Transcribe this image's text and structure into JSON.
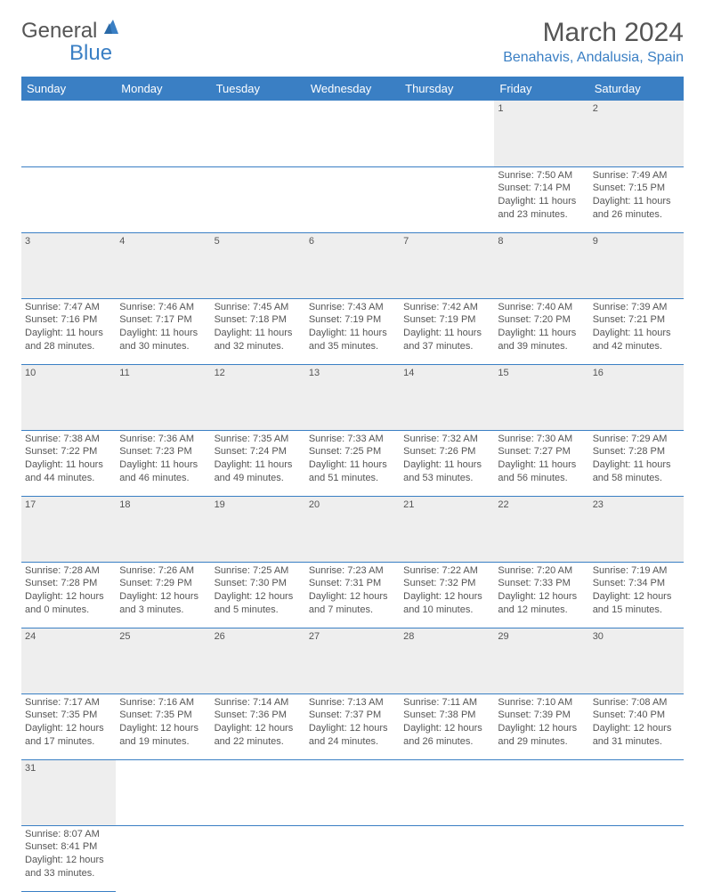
{
  "logo": {
    "text1": "General",
    "text2": "Blue"
  },
  "title": "March 2024",
  "location": "Benahavis, Andalusia, Spain",
  "colors": {
    "accent": "#3a7fc4",
    "header_text": "#ffffff",
    "daynum_bg": "#eeeeee",
    "text": "#555555"
  },
  "weekdays": [
    "Sunday",
    "Monday",
    "Tuesday",
    "Wednesday",
    "Thursday",
    "Friday",
    "Saturday"
  ],
  "weeks": [
    {
      "days": [
        null,
        null,
        null,
        null,
        null,
        {
          "n": "1",
          "sr": "Sunrise: 7:50 AM",
          "ss": "Sunset: 7:14 PM",
          "dl1": "Daylight: 11 hours",
          "dl2": "and 23 minutes."
        },
        {
          "n": "2",
          "sr": "Sunrise: 7:49 AM",
          "ss": "Sunset: 7:15 PM",
          "dl1": "Daylight: 11 hours",
          "dl2": "and 26 minutes."
        }
      ]
    },
    {
      "days": [
        {
          "n": "3",
          "sr": "Sunrise: 7:47 AM",
          "ss": "Sunset: 7:16 PM",
          "dl1": "Daylight: 11 hours",
          "dl2": "and 28 minutes."
        },
        {
          "n": "4",
          "sr": "Sunrise: 7:46 AM",
          "ss": "Sunset: 7:17 PM",
          "dl1": "Daylight: 11 hours",
          "dl2": "and 30 minutes."
        },
        {
          "n": "5",
          "sr": "Sunrise: 7:45 AM",
          "ss": "Sunset: 7:18 PM",
          "dl1": "Daylight: 11 hours",
          "dl2": "and 32 minutes."
        },
        {
          "n": "6",
          "sr": "Sunrise: 7:43 AM",
          "ss": "Sunset: 7:19 PM",
          "dl1": "Daylight: 11 hours",
          "dl2": "and 35 minutes."
        },
        {
          "n": "7",
          "sr": "Sunrise: 7:42 AM",
          "ss": "Sunset: 7:19 PM",
          "dl1": "Daylight: 11 hours",
          "dl2": "and 37 minutes."
        },
        {
          "n": "8",
          "sr": "Sunrise: 7:40 AM",
          "ss": "Sunset: 7:20 PM",
          "dl1": "Daylight: 11 hours",
          "dl2": "and 39 minutes."
        },
        {
          "n": "9",
          "sr": "Sunrise: 7:39 AM",
          "ss": "Sunset: 7:21 PM",
          "dl1": "Daylight: 11 hours",
          "dl2": "and 42 minutes."
        }
      ]
    },
    {
      "days": [
        {
          "n": "10",
          "sr": "Sunrise: 7:38 AM",
          "ss": "Sunset: 7:22 PM",
          "dl1": "Daylight: 11 hours",
          "dl2": "and 44 minutes."
        },
        {
          "n": "11",
          "sr": "Sunrise: 7:36 AM",
          "ss": "Sunset: 7:23 PM",
          "dl1": "Daylight: 11 hours",
          "dl2": "and 46 minutes."
        },
        {
          "n": "12",
          "sr": "Sunrise: 7:35 AM",
          "ss": "Sunset: 7:24 PM",
          "dl1": "Daylight: 11 hours",
          "dl2": "and 49 minutes."
        },
        {
          "n": "13",
          "sr": "Sunrise: 7:33 AM",
          "ss": "Sunset: 7:25 PM",
          "dl1": "Daylight: 11 hours",
          "dl2": "and 51 minutes."
        },
        {
          "n": "14",
          "sr": "Sunrise: 7:32 AM",
          "ss": "Sunset: 7:26 PM",
          "dl1": "Daylight: 11 hours",
          "dl2": "and 53 minutes."
        },
        {
          "n": "15",
          "sr": "Sunrise: 7:30 AM",
          "ss": "Sunset: 7:27 PM",
          "dl1": "Daylight: 11 hours",
          "dl2": "and 56 minutes."
        },
        {
          "n": "16",
          "sr": "Sunrise: 7:29 AM",
          "ss": "Sunset: 7:28 PM",
          "dl1": "Daylight: 11 hours",
          "dl2": "and 58 minutes."
        }
      ]
    },
    {
      "days": [
        {
          "n": "17",
          "sr": "Sunrise: 7:28 AM",
          "ss": "Sunset: 7:28 PM",
          "dl1": "Daylight: 12 hours",
          "dl2": "and 0 minutes."
        },
        {
          "n": "18",
          "sr": "Sunrise: 7:26 AM",
          "ss": "Sunset: 7:29 PM",
          "dl1": "Daylight: 12 hours",
          "dl2": "and 3 minutes."
        },
        {
          "n": "19",
          "sr": "Sunrise: 7:25 AM",
          "ss": "Sunset: 7:30 PM",
          "dl1": "Daylight: 12 hours",
          "dl2": "and 5 minutes."
        },
        {
          "n": "20",
          "sr": "Sunrise: 7:23 AM",
          "ss": "Sunset: 7:31 PM",
          "dl1": "Daylight: 12 hours",
          "dl2": "and 7 minutes."
        },
        {
          "n": "21",
          "sr": "Sunrise: 7:22 AM",
          "ss": "Sunset: 7:32 PM",
          "dl1": "Daylight: 12 hours",
          "dl2": "and 10 minutes."
        },
        {
          "n": "22",
          "sr": "Sunrise: 7:20 AM",
          "ss": "Sunset: 7:33 PM",
          "dl1": "Daylight: 12 hours",
          "dl2": "and 12 minutes."
        },
        {
          "n": "23",
          "sr": "Sunrise: 7:19 AM",
          "ss": "Sunset: 7:34 PM",
          "dl1": "Daylight: 12 hours",
          "dl2": "and 15 minutes."
        }
      ]
    },
    {
      "days": [
        {
          "n": "24",
          "sr": "Sunrise: 7:17 AM",
          "ss": "Sunset: 7:35 PM",
          "dl1": "Daylight: 12 hours",
          "dl2": "and 17 minutes."
        },
        {
          "n": "25",
          "sr": "Sunrise: 7:16 AM",
          "ss": "Sunset: 7:35 PM",
          "dl1": "Daylight: 12 hours",
          "dl2": "and 19 minutes."
        },
        {
          "n": "26",
          "sr": "Sunrise: 7:14 AM",
          "ss": "Sunset: 7:36 PM",
          "dl1": "Daylight: 12 hours",
          "dl2": "and 22 minutes."
        },
        {
          "n": "27",
          "sr": "Sunrise: 7:13 AM",
          "ss": "Sunset: 7:37 PM",
          "dl1": "Daylight: 12 hours",
          "dl2": "and 24 minutes."
        },
        {
          "n": "28",
          "sr": "Sunrise: 7:11 AM",
          "ss": "Sunset: 7:38 PM",
          "dl1": "Daylight: 12 hours",
          "dl2": "and 26 minutes."
        },
        {
          "n": "29",
          "sr": "Sunrise: 7:10 AM",
          "ss": "Sunset: 7:39 PM",
          "dl1": "Daylight: 12 hours",
          "dl2": "and 29 minutes."
        },
        {
          "n": "30",
          "sr": "Sunrise: 7:08 AM",
          "ss": "Sunset: 7:40 PM",
          "dl1": "Daylight: 12 hours",
          "dl2": "and 31 minutes."
        }
      ]
    },
    {
      "days": [
        {
          "n": "31",
          "sr": "Sunrise: 8:07 AM",
          "ss": "Sunset: 8:41 PM",
          "dl1": "Daylight: 12 hours",
          "dl2": "and 33 minutes."
        },
        null,
        null,
        null,
        null,
        null,
        null
      ]
    }
  ]
}
